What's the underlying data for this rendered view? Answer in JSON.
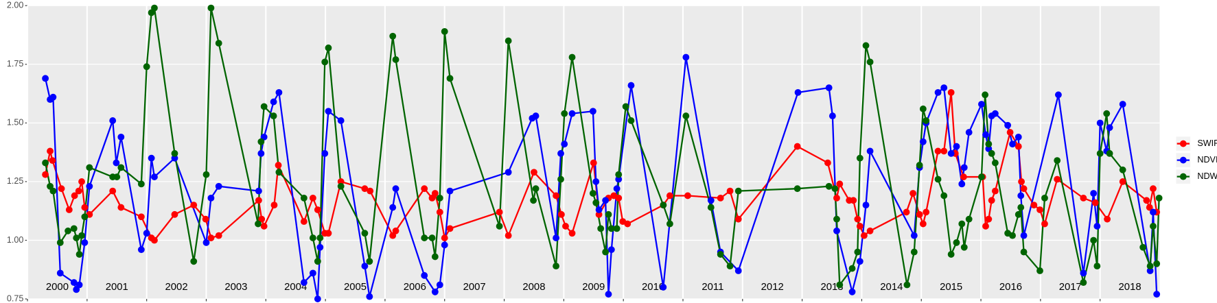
{
  "chart_data": {
    "type": "line",
    "xlim": [
      2000,
      2019
    ],
    "ylim": [
      0.75,
      2.0
    ],
    "xticks": [
      {
        "value": 2000,
        "label": "2000"
      },
      {
        "value": 2001,
        "label": "2001"
      },
      {
        "value": 2002,
        "label": "2002"
      },
      {
        "value": 2003,
        "label": "2003"
      },
      {
        "value": 2004,
        "label": "2004"
      },
      {
        "value": 2005,
        "label": "2005"
      },
      {
        "value": 2006,
        "label": "2006"
      },
      {
        "value": 2007,
        "label": "2007"
      },
      {
        "value": 2008,
        "label": "2008"
      },
      {
        "value": 2009,
        "label": "2009"
      },
      {
        "value": 2010,
        "label": "2010"
      },
      {
        "value": 2011,
        "label": "2011"
      },
      {
        "value": 2012,
        "label": "2012"
      },
      {
        "value": 2013,
        "label": "2013"
      },
      {
        "value": 2014,
        "label": "2014"
      },
      {
        "value": 2015,
        "label": "2015"
      },
      {
        "value": 2016,
        "label": "2016"
      },
      {
        "value": 2017,
        "label": "2017"
      },
      {
        "value": 2018,
        "label": "2018"
      }
    ],
    "yticks": [
      {
        "value": 0.75,
        "label": "0.75"
      },
      {
        "value": 1.0,
        "label": "1.00"
      },
      {
        "value": 1.25,
        "label": "1.25"
      },
      {
        "value": 1.5,
        "label": "1.50"
      },
      {
        "value": 1.75,
        "label": "1.75"
      },
      {
        "value": 2.0,
        "label": "2.00"
      }
    ],
    "grid": true,
    "legend": "right",
    "series": [
      {
        "name": "SWIR",
        "color": "#ff0000",
        "x": [
          2000.3,
          2000.38,
          2000.42,
          2000.57,
          2000.7,
          2000.79,
          2000.86,
          2000.91,
          2000.96,
          2001.04,
          2001.43,
          2001.57,
          2001.91,
          2002.08,
          2002.13,
          2002.47,
          2002.79,
          2002.99,
          2003.08,
          2003.21,
          2003.88,
          2003.93,
          2003.97,
          2004.14,
          2004.21,
          2004.64,
          2004.79,
          2004.87,
          2004.99,
          2005.05,
          2005.26,
          2005.66,
          2005.75,
          2006.13,
          2006.18,
          2006.66,
          2006.79,
          2006.84,
          2006.92,
          2007.0,
          2007.09,
          2007.92,
          2008.07,
          2008.5,
          2008.87,
          2008.96,
          2009.03,
          2009.14,
          2009.5,
          2009.59,
          2009.75,
          2009.84,
          2009.92,
          2009.99,
          2010.07,
          2010.67,
          2010.78,
          2011.08,
          2011.63,
          2011.79,
          2011.93,
          2012.92,
          2013.43,
          2013.58,
          2013.63,
          2013.79,
          2013.86,
          2013.93,
          2013.97,
          2014.04,
          2014.14,
          2014.75,
          2014.86,
          2014.97,
          2015.03,
          2015.08,
          2015.28,
          2015.38,
          2015.5,
          2015.57,
          2015.71,
          2016.03,
          2016.08,
          2016.13,
          2016.18,
          2016.24,
          2016.49,
          2016.63,
          2016.68,
          2016.72,
          2016.89,
          2016.99,
          2017.07,
          2017.28,
          2017.72,
          2017.92,
          2018.12,
          2018.38,
          2018.78,
          2018.83,
          2018.89,
          2018.95
        ],
        "values": [
          1.28,
          1.38,
          1.34,
          1.22,
          1.13,
          1.19,
          1.21,
          1.25,
          1.14,
          1.11,
          1.21,
          1.14,
          1.1,
          1.01,
          1.0,
          1.11,
          1.15,
          1.09,
          1.01,
          1.02,
          1.17,
          1.09,
          1.06,
          1.15,
          1.32,
          1.08,
          1.18,
          1.13,
          1.03,
          1.03,
          1.25,
          1.22,
          1.21,
          1.02,
          1.04,
          1.22,
          1.18,
          1.2,
          1.12,
          1.01,
          1.05,
          1.12,
          1.02,
          1.29,
          1.19,
          1.11,
          1.06,
          1.03,
          1.33,
          1.11,
          1.18,
          1.19,
          1.18,
          1.08,
          1.07,
          1.15,
          1.19,
          1.19,
          1.18,
          1.21,
          1.09,
          1.4,
          1.33,
          1.18,
          1.24,
          1.17,
          1.17,
          1.09,
          1.06,
          1.02,
          1.04,
          1.12,
          1.2,
          1.11,
          1.07,
          1.12,
          1.38,
          1.38,
          1.63,
          1.37,
          1.27,
          1.27,
          1.06,
          1.09,
          1.17,
          1.21,
          1.46,
          1.4,
          1.25,
          1.22,
          1.15,
          1.13,
          1.07,
          1.26,
          1.18,
          1.16,
          1.09,
          1.25,
          1.17,
          1.14,
          1.22,
          1.12
        ]
      },
      {
        "name": "NDVI",
        "color": "#0000ff",
        "x": [
          2000.3,
          2000.38,
          2000.43,
          2000.55,
          2000.78,
          2000.82,
          2000.87,
          2000.96,
          2001.04,
          2001.43,
          2001.49,
          2001.57,
          2001.91,
          2002.0,
          2002.08,
          2002.13,
          2002.47,
          2003.0,
          2003.08,
          2003.21,
          2003.88,
          2003.92,
          2003.97,
          2004.13,
          2004.22,
          2004.64,
          2004.79,
          2004.87,
          2004.91,
          2004.99,
          2005.05,
          2005.26,
          2005.66,
          2005.74,
          2006.13,
          2006.18,
          2006.66,
          2006.84,
          2006.92,
          2007.0,
          2007.09,
          2008.07,
          2008.47,
          2008.53,
          2008.87,
          2008.95,
          2009.01,
          2009.14,
          2009.49,
          2009.54,
          2009.59,
          2009.7,
          2009.75,
          2009.8,
          2009.89,
          2009.92,
          2010.13,
          2010.67,
          2011.05,
          2011.47,
          2011.63,
          2011.93,
          2012.93,
          2013.45,
          2013.51,
          2013.58,
          2013.84,
          2013.97,
          2014.07,
          2014.14,
          2014.88,
          2014.97,
          2015.03,
          2015.08,
          2015.28,
          2015.38,
          2015.5,
          2015.59,
          2015.68,
          2015.72,
          2015.8,
          2016.01,
          2016.08,
          2016.13,
          2016.18,
          2016.24,
          2016.45,
          2016.53,
          2016.63,
          2016.67,
          2016.72,
          2017.3,
          2017.72,
          2017.89,
          2017.95,
          2018.0,
          2018.11,
          2018.16,
          2018.38,
          2018.84,
          2018.89,
          2018.95
        ],
        "values": [
          1.69,
          1.6,
          1.61,
          0.86,
          0.82,
          0.79,
          0.81,
          0.99,
          1.23,
          1.51,
          1.33,
          1.44,
          0.96,
          1.03,
          1.35,
          1.27,
          1.35,
          0.99,
          1.18,
          1.23,
          1.21,
          1.37,
          1.44,
          1.59,
          1.63,
          0.82,
          0.86,
          0.75,
          0.97,
          1.37,
          1.55,
          1.51,
          0.89,
          0.76,
          1.14,
          1.22,
          0.85,
          0.78,
          0.81,
          0.98,
          1.21,
          1.29,
          1.52,
          1.53,
          1.01,
          1.37,
          1.41,
          1.54,
          1.55,
          1.25,
          1.13,
          1.17,
          0.77,
          0.96,
          1.22,
          1.26,
          1.66,
          0.8,
          1.78,
          1.17,
          0.95,
          0.87,
          1.63,
          1.65,
          1.53,
          1.04,
          0.78,
          0.91,
          1.15,
          1.38,
          1.02,
          1.31,
          1.42,
          1.5,
          1.63,
          1.65,
          1.37,
          1.4,
          1.24,
          1.31,
          1.46,
          1.58,
          1.45,
          1.39,
          1.53,
          1.54,
          1.49,
          1.41,
          1.44,
          1.19,
          1.02,
          1.62,
          0.86,
          1.2,
          1.06,
          1.5,
          1.38,
          1.48,
          1.58,
          0.87,
          1.12,
          0.77
        ]
      },
      {
        "name": "NDWI",
        "color": "#006400",
        "x": [
          2000.3,
          2000.38,
          2000.43,
          2000.55,
          2000.68,
          2000.78,
          2000.82,
          2000.87,
          2000.91,
          2000.96,
          2001.04,
          2001.43,
          2001.5,
          2001.57,
          2001.91,
          2002.0,
          2002.08,
          2002.13,
          2002.47,
          2002.79,
          2003.0,
          2003.08,
          2003.21,
          2003.87,
          2003.92,
          2003.97,
          2004.13,
          2004.22,
          2004.64,
          2004.79,
          2004.87,
          2004.91,
          2004.99,
          2005.05,
          2005.26,
          2005.66,
          2005.74,
          2006.13,
          2006.18,
          2006.66,
          2006.79,
          2006.84,
          2006.92,
          2007.0,
          2007.09,
          2007.92,
          2008.07,
          2008.49,
          2008.53,
          2008.87,
          2008.95,
          2009.01,
          2009.14,
          2009.49,
          2009.54,
          2009.62,
          2009.7,
          2009.75,
          2009.8,
          2009.89,
          2009.92,
          2010.04,
          2010.13,
          2010.67,
          2010.78,
          2011.05,
          2011.47,
          2011.63,
          2011.79,
          2011.93,
          2012.92,
          2013.45,
          2013.55,
          2013.58,
          2013.63,
          2013.84,
          2013.93,
          2013.97,
          2014.07,
          2014.14,
          2014.76,
          2014.88,
          2014.97,
          2015.03,
          2015.08,
          2015.28,
          2015.38,
          2015.5,
          2015.59,
          2015.68,
          2015.72,
          2015.8,
          2016.01,
          2016.07,
          2016.13,
          2016.18,
          2016.24,
          2016.45,
          2016.53,
          2016.63,
          2016.67,
          2016.72,
          2016.99,
          2017.07,
          2017.28,
          2017.72,
          2017.89,
          2017.95,
          2018.0,
          2018.11,
          2018.16,
          2018.38,
          2018.72,
          2018.84,
          2018.89,
          2018.95,
          2018.99
        ],
        "values": [
          1.33,
          1.23,
          1.21,
          0.99,
          1.04,
          1.05,
          1.01,
          0.94,
          1.02,
          1.1,
          1.31,
          1.27,
          1.27,
          1.31,
          1.24,
          1.74,
          1.97,
          1.99,
          1.37,
          0.91,
          1.28,
          1.99,
          1.84,
          1.07,
          1.42,
          1.57,
          1.53,
          1.29,
          1.18,
          1.01,
          0.91,
          1.01,
          1.76,
          1.82,
          1.23,
          1.03,
          0.91,
          1.87,
          1.77,
          1.01,
          1.01,
          0.93,
          1.18,
          1.89,
          1.69,
          1.06,
          1.85,
          1.17,
          1.22,
          0.89,
          1.26,
          1.54,
          1.78,
          1.2,
          1.16,
          1.05,
          0.95,
          1.11,
          1.05,
          1.05,
          1.28,
          1.57,
          1.51,
          1.15,
          1.07,
          1.53,
          1.14,
          0.94,
          0.89,
          1.21,
          1.22,
          1.23,
          1.22,
          1.09,
          0.81,
          0.88,
          0.95,
          1.35,
          1.83,
          1.76,
          0.81,
          0.95,
          1.32,
          1.56,
          1.51,
          1.26,
          1.19,
          0.94,
          0.99,
          1.07,
          0.97,
          1.09,
          1.27,
          1.62,
          1.41,
          1.37,
          1.33,
          1.03,
          1.02,
          1.11,
          1.14,
          0.95,
          0.87,
          1.18,
          1.34,
          0.82,
          1.0,
          0.89,
          1.37,
          1.54,
          1.37,
          1.3,
          0.97,
          0.89,
          1.06,
          0.9,
          1.18
        ]
      }
    ]
  }
}
